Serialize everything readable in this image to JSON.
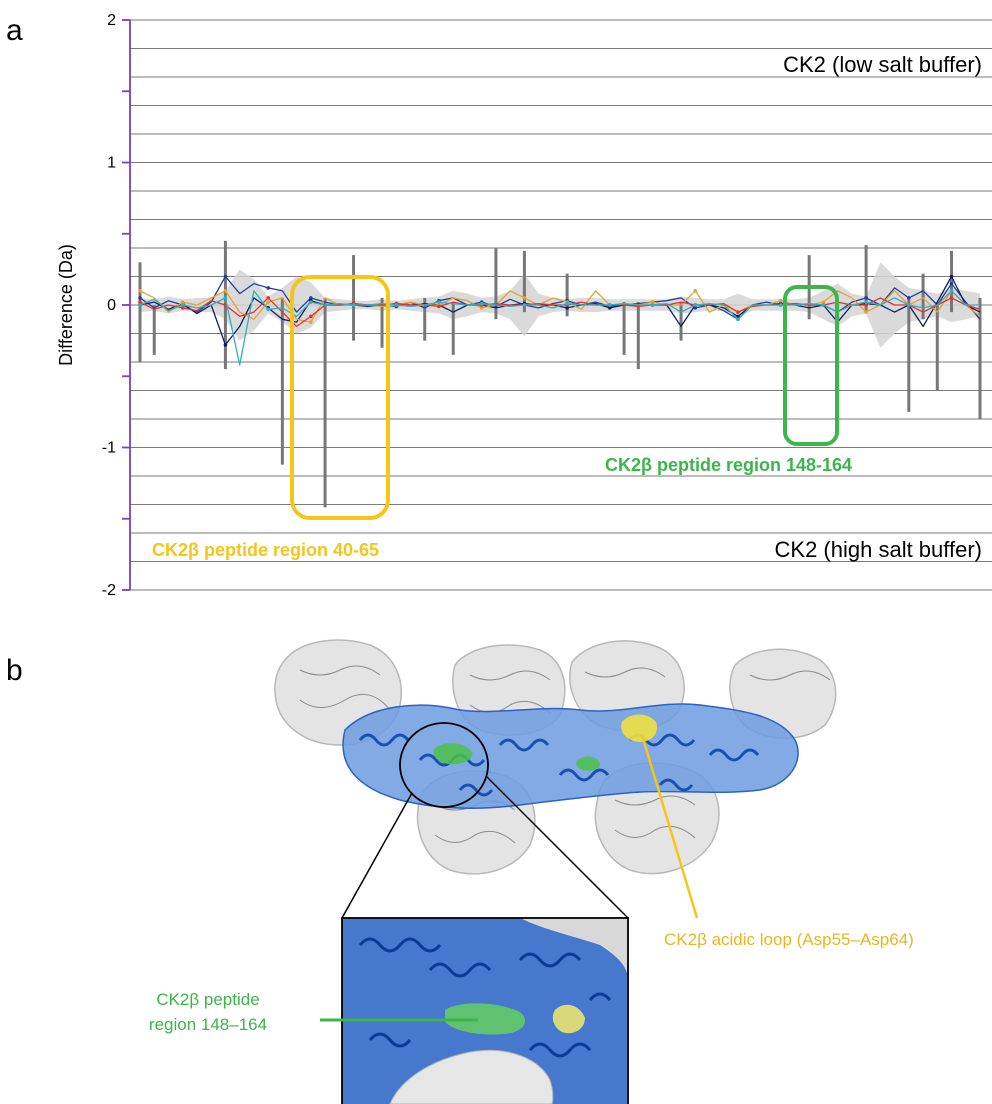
{
  "panel_a": {
    "letter": "a",
    "top_label": "CK2 (low salt buffer)",
    "bottom_label": "CK2 (high salt buffer)",
    "highlight_yellow_label": "CK2β peptide region 40-65",
    "highlight_green_label": "CK2β peptide region 148-164",
    "colors": {
      "axis": "#7b3fbf",
      "grid": "#7a7a7a",
      "yellow": "#f5c518",
      "green": "#3cb54a",
      "errorbar": "#777777",
      "band": "#d4d4d4"
    }
  },
  "chart_data": {
    "type": "line",
    "title": "",
    "xlabel": "",
    "ylabel": "Difference (Da)",
    "ylim": [
      -2,
      2
    ],
    "yticks": [
      -2,
      -1,
      0,
      1,
      2
    ],
    "ytick_labels": [
      "-2",
      "-1",
      "0",
      "1",
      "2"
    ],
    "grid": true,
    "x": [
      1,
      2,
      3,
      4,
      5,
      6,
      7,
      8,
      9,
      10,
      11,
      12,
      13,
      14,
      15,
      16,
      17,
      18,
      19,
      20,
      21,
      22,
      23,
      24,
      25,
      26,
      27,
      28,
      29,
      30,
      31,
      32,
      33,
      34,
      35,
      36,
      37,
      38,
      39,
      40,
      41,
      42,
      43,
      44,
      45,
      46,
      47,
      48,
      49,
      50,
      51,
      52,
      53,
      54,
      55,
      56,
      57,
      58,
      59,
      60
    ],
    "series": [
      {
        "color": "#1f3f9f",
        "values": [
          0.05,
          -0.02,
          0.03,
          0.0,
          -0.05,
          0.02,
          0.2,
          0.08,
          0.15,
          0.12,
          0.1,
          -0.05,
          0.05,
          0.02,
          0.0,
          0.01,
          0.0,
          0.0,
          -0.01,
          0.02,
          -0.02,
          0.03,
          0.05,
          0.0,
          0.02,
          -0.01,
          0.04,
          0.0,
          -0.02,
          0.01,
          0.03,
          0.0,
          0.02,
          -0.01,
          0.0,
          0.01,
          0.02,
          0.03,
          0.05,
          -0.02,
          0.0,
          -0.04,
          -0.1,
          0.0,
          0.02,
          0.0,
          0.01,
          0.0,
          0.0,
          -0.05,
          0.02,
          0.05,
          0.0,
          0.12,
          0.05,
          0.1,
          0.0,
          0.15,
          0.02,
          -0.1
        ]
      },
      {
        "color": "#0f1f5f",
        "values": [
          0.0,
          0.02,
          -0.03,
          0.01,
          -0.06,
          0.0,
          -0.28,
          -0.15,
          0.05,
          -0.02,
          -0.1,
          -0.12,
          0.03,
          0.0,
          0.0,
          0.0,
          -0.01,
          0.0,
          0.01,
          0.0,
          0.01,
          0.0,
          -0.05,
          0.0,
          0.0,
          -0.02,
          0.0,
          0.01,
          0.0,
          0.0,
          -0.02,
          0.0,
          0.01,
          -0.02,
          0.0,
          0.0,
          0.0,
          0.0,
          -0.15,
          0.0,
          0.0,
          -0.02,
          -0.08,
          0.0,
          0.0,
          0.01,
          0.0,
          -0.02,
          0.0,
          -0.12,
          0.0,
          0.01,
          0.0,
          -0.05,
          0.0,
          -0.15,
          0.02,
          0.2,
          0.0,
          -0.05
        ]
      },
      {
        "color": "#e8a030",
        "values": [
          0.1,
          0.05,
          -0.05,
          0.02,
          0.0,
          0.05,
          0.1,
          -0.05,
          -0.1,
          0.02,
          0.05,
          -0.1,
          -0.12,
          0.05,
          0.0,
          0.0,
          0.0,
          -0.01,
          0.0,
          0.02,
          0.0,
          0.0,
          0.05,
          0.03,
          -0.02,
          0.0,
          0.1,
          0.05,
          0.0,
          0.05,
          0.02,
          -0.03,
          0.1,
          0.0,
          0.01,
          0.0,
          0.02,
          0.0,
          0.0,
          0.1,
          -0.05,
          0.0,
          -0.05,
          0.0,
          0.0,
          0.03,
          0.0,
          0.0,
          0.02,
          0.1,
          0.05,
          -0.05,
          0.0,
          0.1,
          0.0,
          0.05,
          -0.05,
          0.1,
          0.0,
          -0.08
        ]
      },
      {
        "color": "#e83030",
        "values": [
          0.02,
          -0.03,
          0.0,
          -0.02,
          -0.04,
          0.03,
          0.0,
          -0.08,
          -0.05,
          0.05,
          -0.05,
          -0.15,
          -0.08,
          0.0,
          0.0,
          0.01,
          0.0,
          0.0,
          0.01,
          0.0,
          0.0,
          -0.01,
          0.02,
          0.0,
          0.0,
          0.01,
          0.0,
          0.0,
          0.01,
          0.0,
          0.0,
          0.02,
          0.0,
          0.0,
          0.0,
          -0.01,
          0.0,
          0.0,
          0.02,
          0.0,
          0.0,
          0.01,
          -0.05,
          -0.01,
          0.0,
          0.0,
          0.01,
          0.0,
          0.0,
          0.02,
          0.0,
          0.0,
          0.05,
          0.0,
          0.0,
          -0.05,
          0.0,
          0.05,
          0.0,
          -0.03
        ]
      },
      {
        "color": "#30b0c0",
        "values": [
          0.0,
          0.04,
          -0.04,
          0.0,
          -0.02,
          0.0,
          0.05,
          -0.42,
          0.1,
          -0.03,
          -0.02,
          -0.08,
          0.02,
          0.0,
          0.01,
          0.0,
          0.0,
          0.01,
          0.0,
          -0.01,
          0.0,
          0.02,
          0.01,
          0.0,
          0.01,
          0.0,
          -0.01,
          0.0,
          0.0,
          -0.02,
          0.01,
          0.0,
          0.0,
          0.0,
          0.01,
          0.0,
          0.0,
          0.01,
          -0.05,
          0.0,
          0.01,
          0.0,
          -0.1,
          0.0,
          0.0,
          0.0,
          0.0,
          0.01,
          0.0,
          -0.05,
          0.0,
          0.02,
          0.0,
          0.05,
          0.0,
          -0.02,
          0.0,
          0.1,
          0.0,
          0.0
        ]
      }
    ],
    "annotations": [
      "CK2 (low salt buffer)",
      "CK2 (high salt buffer)",
      "CK2β peptide region 40-65",
      "CK2β peptide region 148-164"
    ]
  },
  "panel_b": {
    "letter": "b",
    "acidic_loop_label": "CK2β acidic loop (Asp55–Asp64)",
    "peptide_label_line1": "CK2β peptide",
    "peptide_label_line2": "region 148–164"
  }
}
